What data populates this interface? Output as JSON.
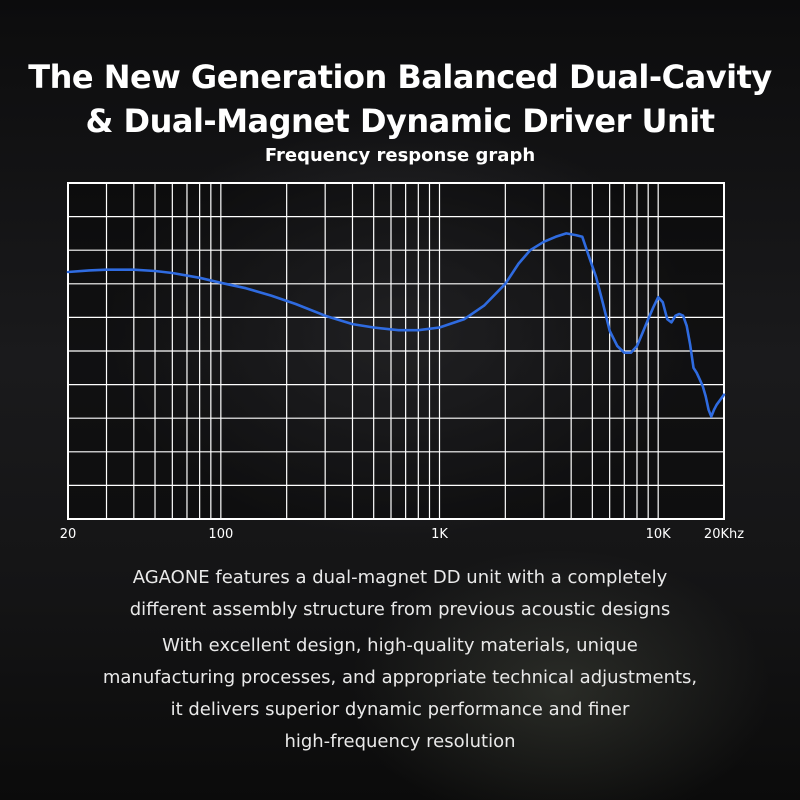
{
  "header": {
    "title_lines": [
      "The New Generation Balanced Dual-Cavity",
      "& Dual-Magnet Dynamic Driver Unit"
    ]
  },
  "chart_data": {
    "type": "line",
    "title": "Frequency response graph",
    "xlabel": "",
    "ylabel": "",
    "xscale": "log",
    "xlim": [
      20,
      20000
    ],
    "x_tick_labels": [
      {
        "value": 20,
        "label": "20"
      },
      {
        "value": 100,
        "label": "100"
      },
      {
        "value": 1000,
        "label": "1K"
      },
      {
        "value": 10000,
        "label": "10K"
      },
      {
        "value": 20000,
        "label": "20Khz"
      }
    ],
    "y_divisions": 10,
    "ylim": [
      0,
      10
    ],
    "grid": true,
    "line_color": "#2f6be0",
    "series": [
      {
        "x": [
          20,
          25,
          30,
          40,
          50,
          60,
          80,
          100,
          130,
          170,
          220,
          300,
          400,
          500,
          650,
          800,
          1000,
          1300,
          1600,
          2000,
          2300,
          2600,
          3000,
          3400,
          3800,
          4200,
          4500,
          4800,
          5200,
          5600,
          6000,
          6500,
          7000,
          7500,
          8000,
          8500,
          9000,
          9500,
          10000,
          10500,
          11000,
          11500,
          12000,
          12500,
          13000,
          13500,
          14000,
          14500,
          15000,
          15500,
          16000,
          16500,
          17000,
          17500,
          18000,
          18500,
          19000,
          19500,
          20000
        ],
        "values": [
          7.35,
          7.4,
          7.42,
          7.42,
          7.38,
          7.32,
          7.18,
          7.03,
          6.87,
          6.65,
          6.4,
          6.05,
          5.8,
          5.7,
          5.62,
          5.62,
          5.7,
          5.95,
          6.35,
          7.0,
          7.6,
          8.0,
          8.25,
          8.4,
          8.5,
          8.45,
          8.4,
          7.85,
          7.2,
          6.4,
          5.6,
          5.15,
          4.95,
          4.95,
          5.15,
          5.55,
          5.95,
          6.3,
          6.6,
          6.45,
          5.95,
          5.85,
          6.05,
          6.1,
          6.05,
          5.75,
          5.2,
          4.5,
          4.35,
          4.15,
          3.95,
          3.65,
          3.25,
          3.05,
          3.25,
          3.4,
          3.5,
          3.6,
          3.7
        ]
      }
    ]
  },
  "description": {
    "paragraph_1": [
      "AGAONE features a dual-magnet DD unit with a completely",
      "different assembly structure from previous acoustic designs"
    ],
    "paragraph_2": [
      "With excellent design, high-quality materials, unique",
      "manufacturing processes, and appropriate technical adjustments,",
      "it delivers superior dynamic performance and finer",
      "high-frequency resolution"
    ]
  }
}
